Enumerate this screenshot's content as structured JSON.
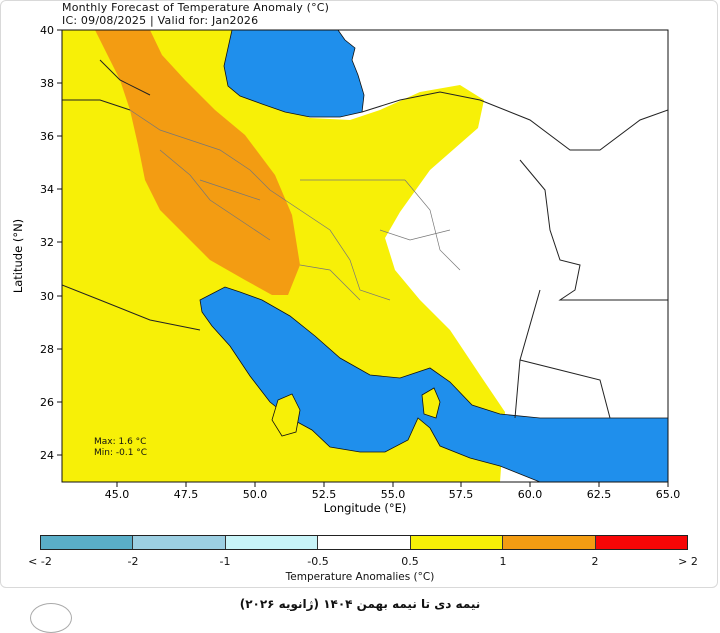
{
  "header": {
    "title_line1": "Monthly Forecast of Temperature Anomaly (°C)",
    "title_line2": "IC: 09/08/2025 | Valid for: Jan2026"
  },
  "map": {
    "x_axis_label": "Longitude (°E)",
    "y_axis_label": "Latitude (°N)",
    "x_ticks": [
      "45.0",
      "47.5",
      "50.0",
      "52.5",
      "55.0",
      "57.5",
      "60.0",
      "62.5",
      "65.0"
    ],
    "y_ticks": [
      "24",
      "26",
      "28",
      "30",
      "32",
      "34",
      "36",
      "38",
      "40"
    ],
    "x_range": [
      43,
      65
    ],
    "y_range": [
      23,
      40
    ],
    "stats": {
      "max": "Max: 1.6 °C",
      "min": "Min: -0.1 °C"
    },
    "colors": {
      "water": "#1f8fec",
      "anomaly_0_5_to_1": "#f7f007",
      "anomaly_1_to_2": "#f39c12",
      "neutral": "#ffffff"
    }
  },
  "colorbar": {
    "label": "Temperature Anomalies (°C)",
    "ticks": [
      "< -2",
      "-2",
      "-1",
      "-0.5",
      "0.5",
      "1",
      "2",
      "> 2"
    ],
    "colors": [
      "#5aaec8",
      "#5aaec8",
      "#9ccfe2",
      "#c8f4f8",
      "#ffffff",
      "#f7f007",
      "#f39c12",
      "#f70606"
    ]
  },
  "footer": {
    "caption": "نیمه دی تا نیمه بهمن ۱۴۰۴ (ژانویه ۲۰۲۶)"
  }
}
